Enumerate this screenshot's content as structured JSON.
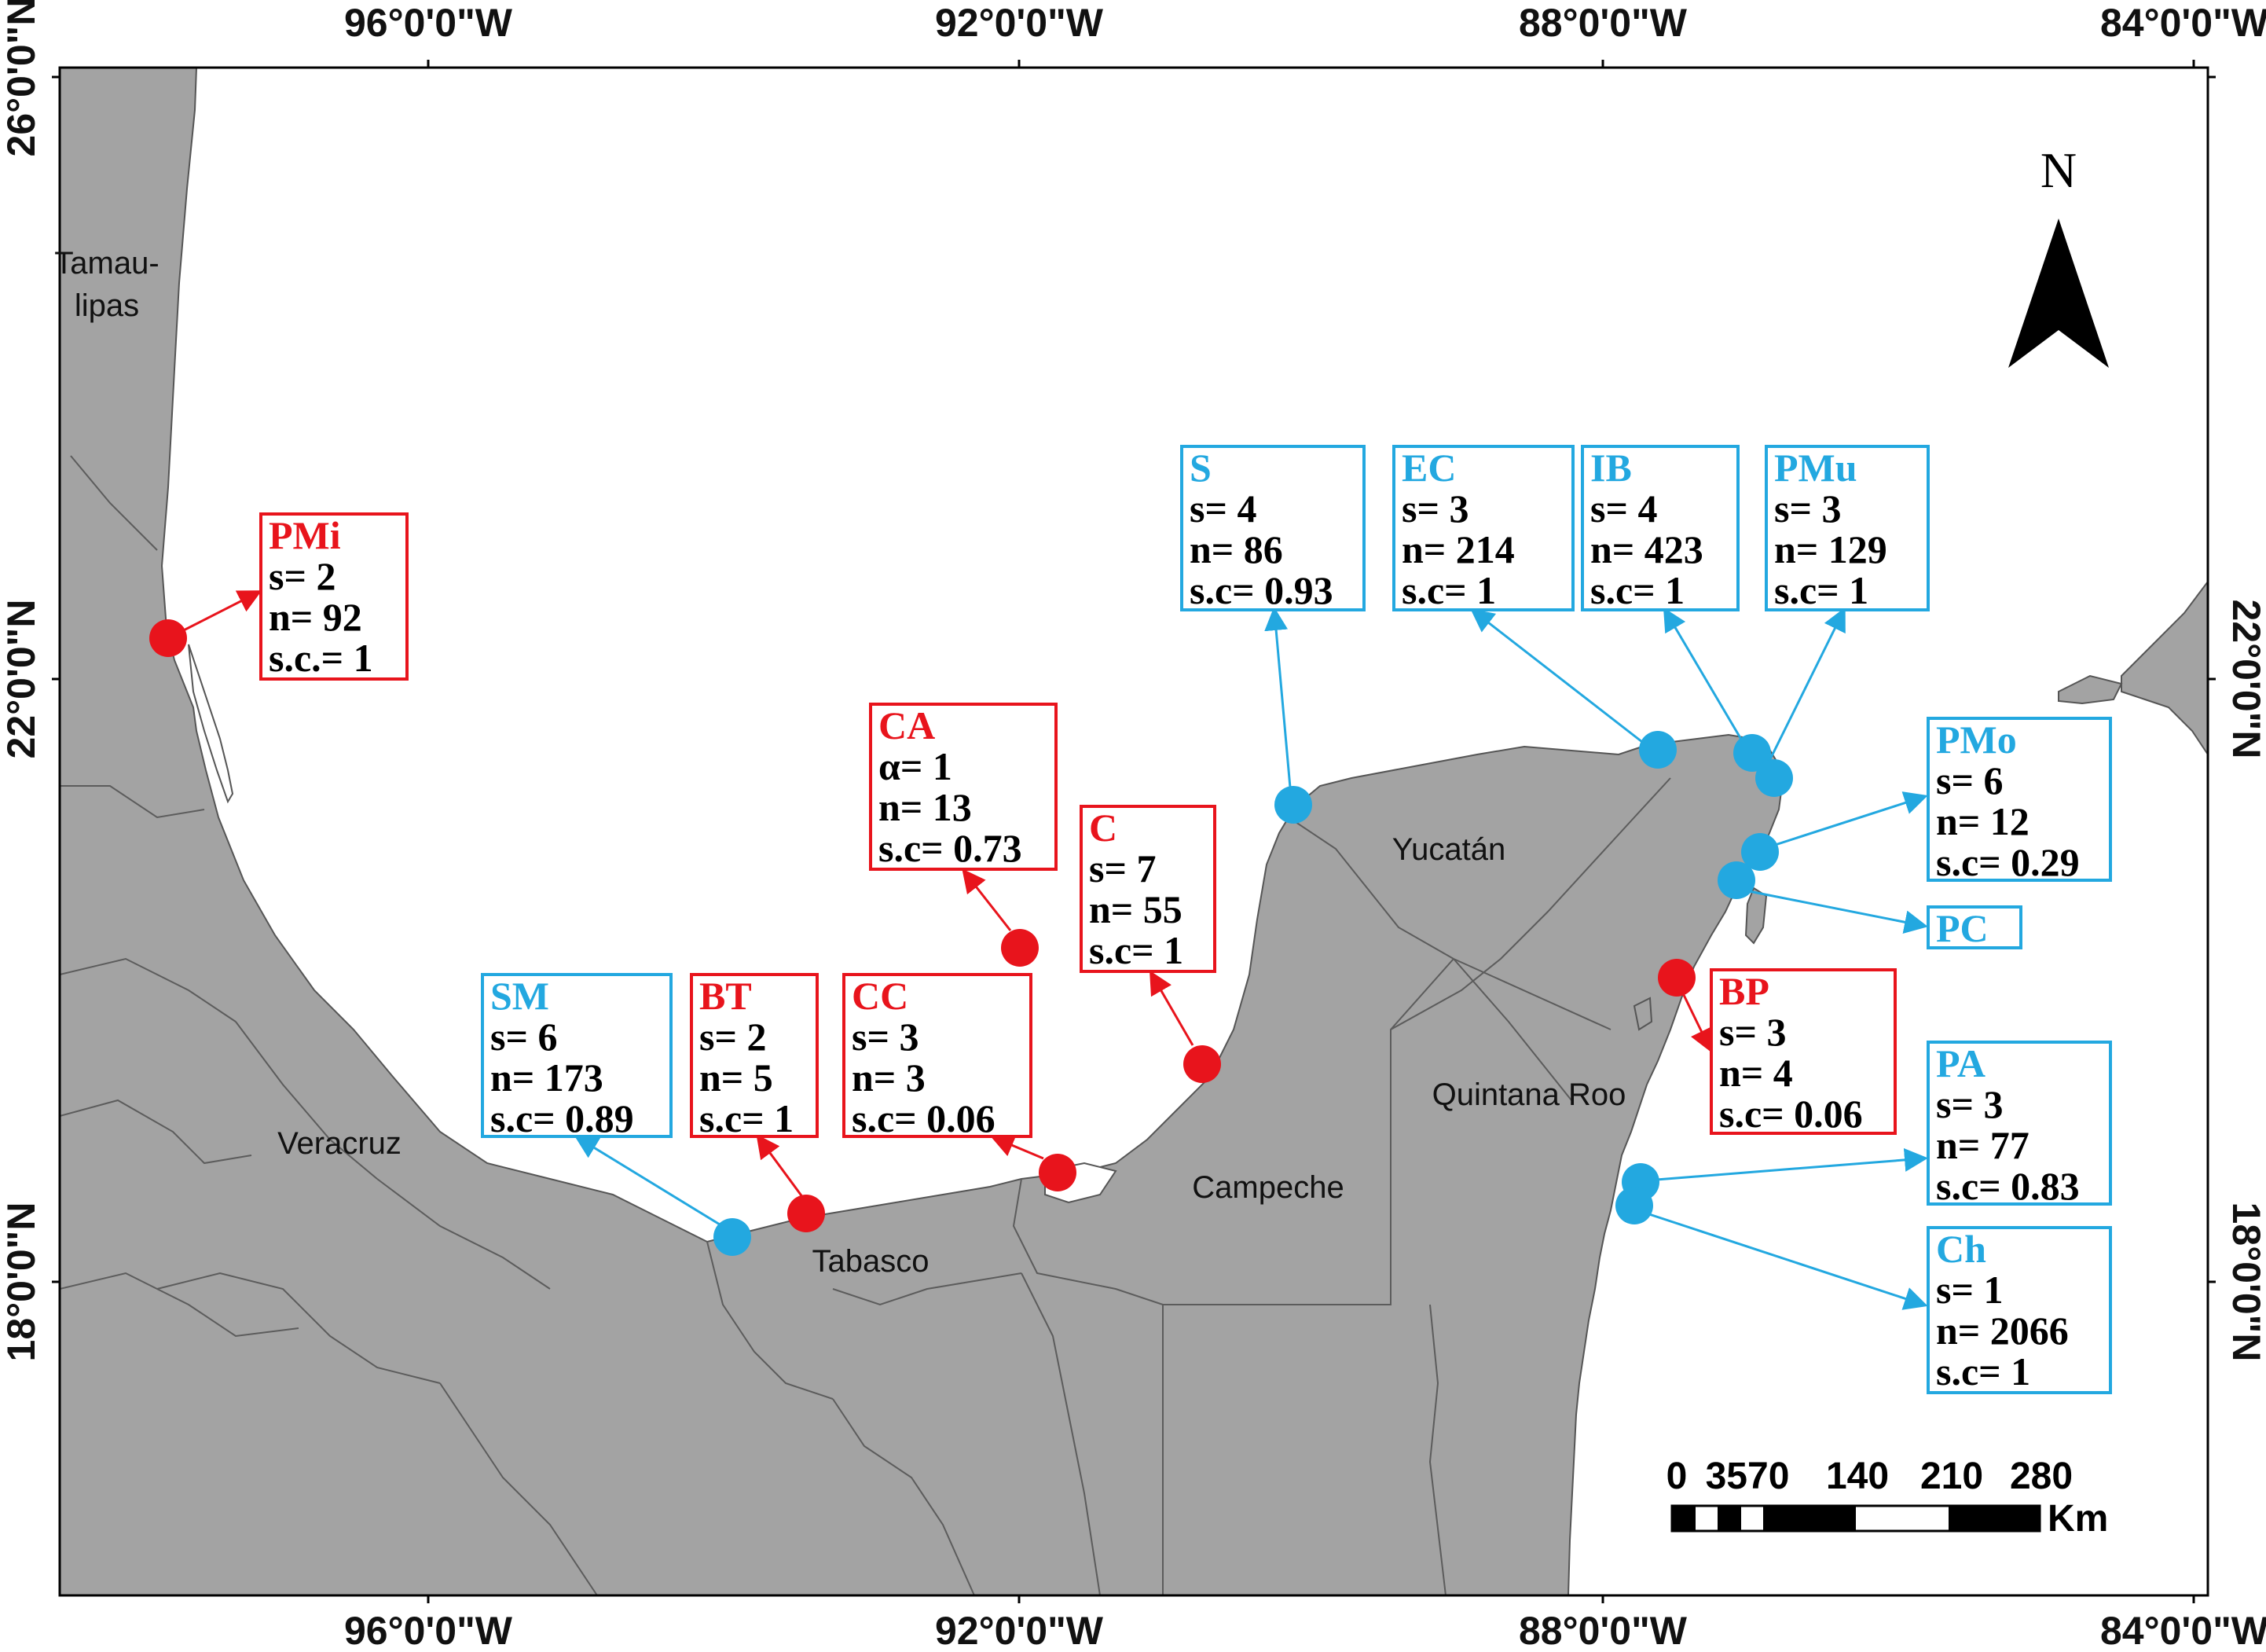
{
  "axes": {
    "lon_ticks": [
      "96°0'0\"W",
      "92°0'0\"W",
      "88°0'0\"W",
      "84°0'0\"W"
    ],
    "lat_ticks": [
      "26°0'0\"N",
      "22°0'0\"N",
      "18°0'0\"N"
    ]
  },
  "states": {
    "tamaulipas_line1": "Tamau-",
    "tamaulipas_line2": "lipas",
    "veracruz": "Veracruz",
    "tabasco": "Tabasco",
    "campeche": "Campeche",
    "yucatan": "Yucatán",
    "quintana_roo": "Quintana Roo"
  },
  "north_arrow": {
    "label": "N"
  },
  "scale_bar": {
    "labels": [
      "0",
      "3570",
      "140",
      "210",
      "280"
    ],
    "unit": "Km"
  },
  "colors": {
    "land": "#a3a3a3",
    "border": "#666666",
    "sea": "#ffffff",
    "red_group": "#e8141c",
    "blue_group": "#23a8e0"
  },
  "sites": [
    {
      "id": "PMi",
      "group": "red",
      "lines": [
        "s= 2",
        "n= 92",
        "s.c.= 1"
      ]
    },
    {
      "id": "CA",
      "group": "red",
      "lines": [
        "α= 1",
        "n= 13",
        "s.c= 0.73"
      ]
    },
    {
      "id": "C",
      "group": "red",
      "lines": [
        "s= 7",
        "n= 55",
        "s.c= 1"
      ]
    },
    {
      "id": "SM",
      "group": "blue",
      "lines": [
        "s= 6",
        "n= 173",
        "s.c= 0.89"
      ]
    },
    {
      "id": "BT",
      "group": "red",
      "lines": [
        "s= 2",
        "n= 5",
        "s.c= 1"
      ]
    },
    {
      "id": "CC",
      "group": "red",
      "lines": [
        "s= 3",
        "n= 3",
        "s.c= 0.06"
      ]
    },
    {
      "id": "S",
      "group": "blue",
      "lines": [
        "s= 4",
        "n= 86",
        "s.c= 0.93"
      ]
    },
    {
      "id": "EC",
      "group": "blue",
      "lines": [
        "s= 3",
        "n= 214",
        "s.c= 1"
      ]
    },
    {
      "id": "IB",
      "group": "blue",
      "lines": [
        "s= 4",
        "n= 423",
        "s.c= 1"
      ]
    },
    {
      "id": "PMu",
      "group": "blue",
      "lines": [
        "s= 3",
        "n= 129",
        "s.c= 1"
      ]
    },
    {
      "id": "PMo",
      "group": "blue",
      "lines": [
        "s= 6",
        "n= 12",
        "s.c= 0.29"
      ]
    },
    {
      "id": "PC",
      "group": "blue",
      "lines": []
    },
    {
      "id": "BP",
      "group": "red",
      "lines": [
        "s= 3",
        "n= 4",
        "s.c= 0.06"
      ]
    },
    {
      "id": "PA",
      "group": "blue",
      "lines": [
        "s= 3",
        "n= 77",
        "s.c= 0.83"
      ]
    },
    {
      "id": "Ch",
      "group": "blue",
      "lines": [
        "s= 1",
        "n= 2066",
        "s.c= 1"
      ]
    }
  ]
}
